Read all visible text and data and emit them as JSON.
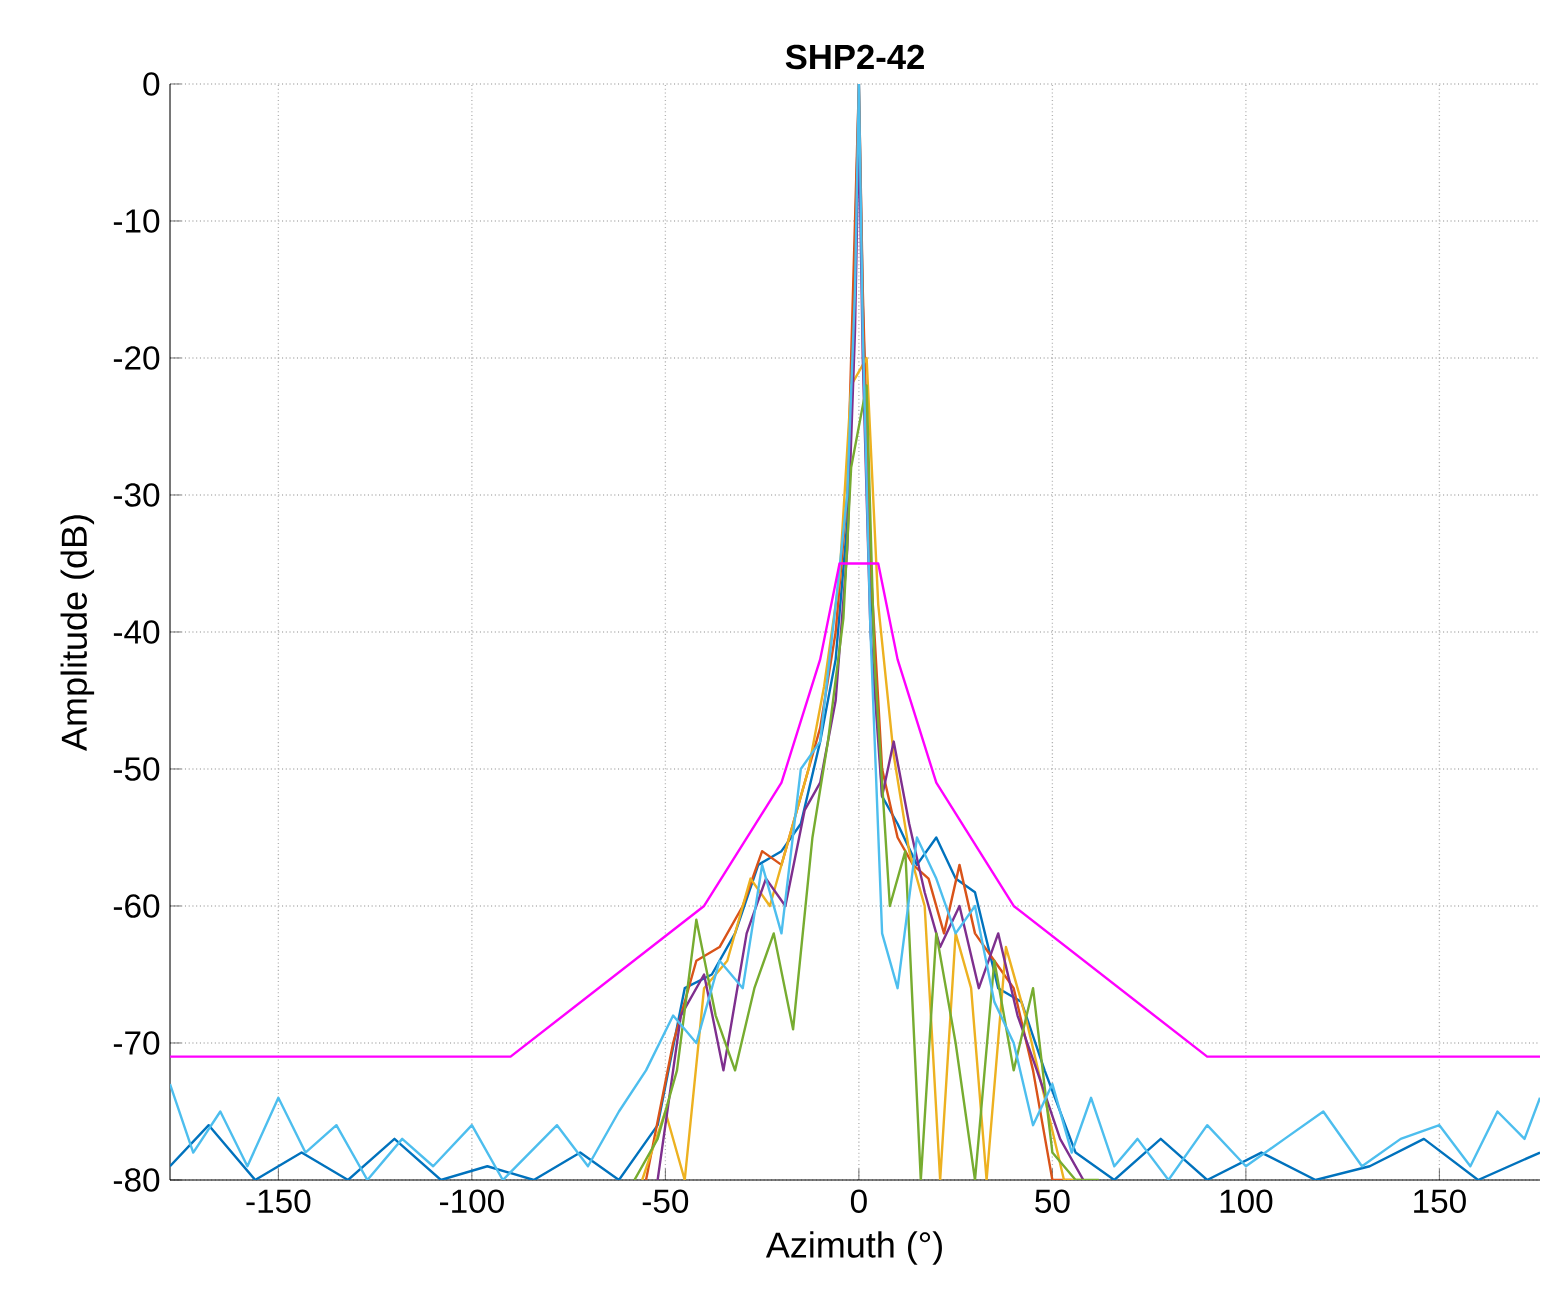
{
  "chart_data": {
    "type": "line",
    "title": "SHP2-42",
    "xlabel": "Azimuth (°)",
    "ylabel": "Amplitude (dB)",
    "xlim": [
      -178,
      176
    ],
    "ylim": [
      -80,
      0
    ],
    "xticks": [
      -150,
      -100,
      -50,
      0,
      50,
      100,
      150
    ],
    "yticks": [
      -80,
      -70,
      -60,
      -50,
      -40,
      -30,
      -20,
      -10,
      0
    ],
    "grid": true,
    "marker": "none",
    "line_style": "solid",
    "series": [
      {
        "color": "#0072bd",
        "x": [
          -178,
          -168,
          -156,
          -144,
          -132,
          -120,
          -108,
          -96,
          -84,
          -72,
          -62,
          -52,
          -45,
          -38,
          -32,
          -26,
          -20,
          -15,
          -10,
          -6,
          -3,
          -1,
          0,
          1,
          3,
          6,
          10,
          15,
          20,
          25,
          30,
          36,
          42,
          48,
          56,
          66,
          78,
          90,
          104,
          118,
          132,
          146,
          160,
          176
        ],
        "values": [
          -79,
          -76,
          -80,
          -78,
          -80,
          -77,
          -80,
          -79,
          -80,
          -78,
          -80,
          -76,
          -66,
          -65,
          -62,
          -57,
          -56,
          -54,
          -48,
          -42,
          -32,
          -12,
          0,
          -16,
          -36,
          -52,
          -54,
          -57,
          -55,
          -58,
          -59,
          -66,
          -67,
          -72,
          -78,
          -80,
          -77,
          -80,
          -78,
          -80,
          -79,
          -77,
          -80,
          -78
        ]
      },
      {
        "color": "#d95319",
        "x": [
          -55,
          -48,
          -42,
          -36,
          -30,
          -25,
          -20,
          -15,
          -10,
          -6,
          -3,
          -1,
          0,
          1,
          3,
          6,
          10,
          14,
          18,
          22,
          26,
          30,
          35,
          40,
          45,
          50,
          55
        ],
        "values": [
          -80,
          -70,
          -64,
          -63,
          -60,
          -56,
          -57,
          -52,
          -47,
          -40,
          -30,
          -10,
          0,
          -15,
          -35,
          -50,
          -55,
          -57,
          -58,
          -62,
          -57,
          -62,
          -64,
          -66,
          -72,
          -80,
          -80
        ]
      },
      {
        "color": "#edb120",
        "x": [
          -56,
          -50,
          -45,
          -40,
          -34,
          -28,
          -23,
          -18,
          -13,
          -9,
          -5,
          -2,
          0,
          2,
          5,
          9,
          13,
          17,
          21,
          25,
          29,
          33,
          38,
          43,
          48,
          53,
          58
        ],
        "values": [
          -80,
          -75,
          -80,
          -66,
          -64,
          -58,
          -60,
          -55,
          -50,
          -44,
          -36,
          -22,
          null,
          -20,
          -38,
          -49,
          -56,
          -60,
          -80,
          -62,
          -66,
          -80,
          -63,
          -68,
          -74,
          -80,
          -80
        ]
      },
      {
        "color": "#7e2f8e",
        "x": [
          -52,
          -46,
          -40,
          -35,
          -29,
          -24,
          -19,
          -14,
          -10,
          -6,
          -3,
          -1,
          0,
          1,
          3,
          6,
          9,
          13,
          17,
          21,
          26,
          31,
          36,
          41,
          46,
          52,
          58
        ],
        "values": [
          -80,
          -68,
          -65,
          -72,
          -62,
          -58,
          -60,
          -53,
          -51,
          -45,
          -34,
          -18,
          -3,
          -20,
          -40,
          -52,
          -48,
          -54,
          -59,
          -63,
          -60,
          -66,
          -62,
          -68,
          -72,
          -77,
          -80
        ]
      },
      {
        "color": "#77ac30",
        "x": [
          -58,
          -52,
          -47,
          -42,
          -37,
          -32,
          -27,
          -22,
          -17,
          -12,
          -8,
          -4,
          -2,
          0,
          2,
          4,
          8,
          12,
          16,
          20,
          25,
          30,
          35,
          40,
          45,
          50,
          56,
          62
        ],
        "values": [
          -80,
          -77,
          -72,
          -61,
          -68,
          -72,
          -66,
          -62,
          -69,
          -55,
          -48,
          -39,
          -28,
          null,
          -22,
          -42,
          -60,
          -56,
          -80,
          -62,
          -70,
          -80,
          -64,
          -72,
          -66,
          -78,
          -80,
          -80
        ]
      },
      {
        "color": "#4dbeee",
        "x": [
          -178,
          -172,
          -165,
          -158,
          -150,
          -143,
          -135,
          -127,
          -118,
          -110,
          -100,
          -92,
          -85,
          -78,
          -70,
          -62,
          -55,
          -48,
          -42,
          -36,
          -30,
          -25,
          -20,
          -15,
          -10,
          -6,
          -3,
          -1,
          0,
          1,
          3,
          6,
          10,
          15,
          20,
          25,
          30,
          35,
          40,
          45,
          50,
          55,
          60,
          66,
          72,
          80,
          90,
          100,
          110,
          120,
          130,
          140,
          150,
          158,
          165,
          172,
          176
        ],
        "values": [
          -73,
          -78,
          -75,
          -79,
          -74,
          -78,
          -76,
          -80,
          -77,
          -79,
          -76,
          -80,
          -78,
          -76,
          -79,
          -75,
          -72,
          -68,
          -70,
          -64,
          -66,
          -57,
          -62,
          -50,
          -48,
          -38,
          -30,
          -15,
          0,
          -18,
          -40,
          -62,
          -66,
          -55,
          -58,
          -62,
          -60,
          -67,
          -70,
          -76,
          -73,
          -78,
          -74,
          -79,
          -77,
          -80,
          -76,
          -79,
          -77,
          -75,
          -79,
          -77,
          -76,
          -79,
          -75,
          -77,
          -74
        ]
      },
      {
        "color": "#ff00ff",
        "x": [
          -178,
          -90,
          -40,
          -20,
          -10,
          -5,
          5,
          10,
          20,
          40,
          90,
          176
        ],
        "values": [
          -71,
          -71,
          -60,
          -51,
          -42,
          -35,
          -35,
          -42,
          -51,
          -60,
          -71,
          -71
        ]
      }
    ]
  }
}
